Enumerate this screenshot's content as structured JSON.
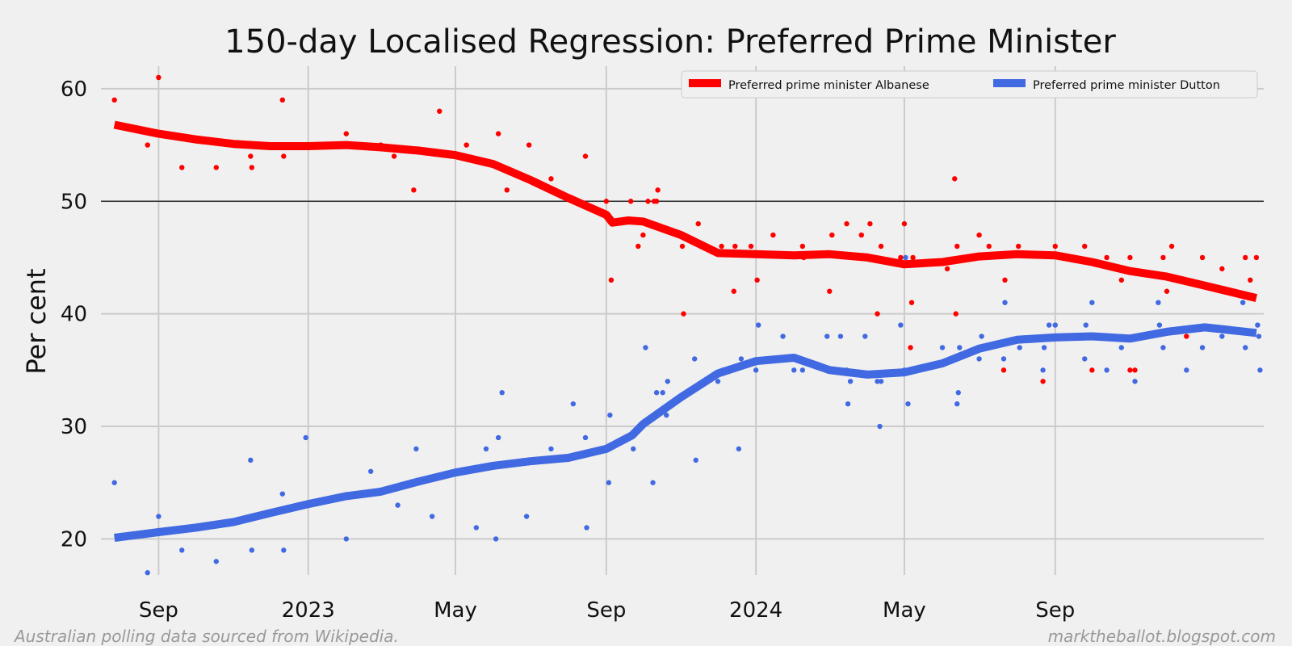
{
  "chart_data": {
    "type": "line",
    "title": "150-day Localised Regression: Preferred Prime Minister",
    "ylabel": "Per cent",
    "xlabel": "",
    "x_range": [
      "2022-07-16",
      "2025-02-18"
    ],
    "ylim": [
      16.8,
      62
    ],
    "y_ticks": [
      20,
      30,
      40,
      50,
      60
    ],
    "x_ticks": [
      {
        "date": "2022-09-01",
        "label": "Sep"
      },
      {
        "date": "2023-01-01",
        "label": "2023"
      },
      {
        "date": "2023-05-01",
        "label": "May"
      },
      {
        "date": "2023-09-01",
        "label": "Sep"
      },
      {
        "date": "2024-01-01",
        "label": "2024"
      },
      {
        "date": "2024-05-01",
        "label": "May"
      },
      {
        "date": "2024-09-01",
        "label": "Sep"
      }
    ],
    "reference_line": 50,
    "grid": true,
    "legend_position": "top-right",
    "footer_left": "Australian polling data sourced from Wikipedia.",
    "footer_right": "marktheballot.blogspot.com",
    "series": [
      {
        "name": "Preferred prime minister Albanese",
        "color": "#ff0000",
        "trend": [
          [
            "2022-07-27",
            56.8
          ],
          [
            "2022-09-01",
            56.0
          ],
          [
            "2022-10-01",
            55.5
          ],
          [
            "2022-11-01",
            55.1
          ],
          [
            "2022-12-01",
            54.9
          ],
          [
            "2023-01-01",
            54.9
          ],
          [
            "2023-02-01",
            55.0
          ],
          [
            "2023-03-01",
            54.8
          ],
          [
            "2023-04-01",
            54.5
          ],
          [
            "2023-05-01",
            54.1
          ],
          [
            "2023-06-01",
            53.3
          ],
          [
            "2023-07-01",
            51.9
          ],
          [
            "2023-08-01",
            50.3
          ],
          [
            "2023-09-01",
            48.8
          ],
          [
            "2023-09-06",
            48.1
          ],
          [
            "2023-09-19",
            48.3
          ],
          [
            "2023-10-01",
            48.2
          ],
          [
            "2023-11-01",
            47.0
          ],
          [
            "2023-12-01",
            45.4
          ],
          [
            "2024-01-01",
            45.3
          ],
          [
            "2024-02-01",
            45.2
          ],
          [
            "2024-03-01",
            45.3
          ],
          [
            "2024-04-01",
            45.0
          ],
          [
            "2024-05-01",
            44.4
          ],
          [
            "2024-06-01",
            44.6
          ],
          [
            "2024-07-01",
            45.1
          ],
          [
            "2024-08-01",
            45.3
          ],
          [
            "2024-09-01",
            45.2
          ],
          [
            "2024-10-01",
            44.6
          ],
          [
            "2024-11-01",
            43.8
          ],
          [
            "2024-12-01",
            43.3
          ],
          [
            "2025-01-01",
            42.5
          ],
          [
            "2025-02-12",
            41.4
          ]
        ],
        "polls": [
          [
            "2022-07-27",
            59
          ],
          [
            "2022-08-23",
            55
          ],
          [
            "2022-09-01",
            61
          ],
          [
            "2022-09-20",
            53
          ],
          [
            "2022-10-18",
            53
          ],
          [
            "2022-11-15",
            54
          ],
          [
            "2022-11-16",
            53
          ],
          [
            "2022-12-11",
            59
          ],
          [
            "2022-12-12",
            54
          ],
          [
            "2023-02-01",
            56
          ],
          [
            "2023-03-01",
            55
          ],
          [
            "2023-03-12",
            54
          ],
          [
            "2023-03-28",
            51
          ],
          [
            "2023-04-18",
            58
          ],
          [
            "2023-05-10",
            55
          ],
          [
            "2023-06-05",
            56
          ],
          [
            "2023-06-08",
            53
          ],
          [
            "2023-06-12",
            51
          ],
          [
            "2023-06-30",
            55
          ],
          [
            "2023-07-18",
            52
          ],
          [
            "2023-08-15",
            54
          ],
          [
            "2023-09-01",
            50
          ],
          [
            "2023-09-05",
            43
          ],
          [
            "2023-09-21",
            50
          ],
          [
            "2023-09-27",
            46
          ],
          [
            "2023-10-01",
            47
          ],
          [
            "2023-10-05",
            50
          ],
          [
            "2023-10-10",
            50
          ],
          [
            "2023-10-12",
            50
          ],
          [
            "2023-10-13",
            51
          ],
          [
            "2023-11-02",
            46
          ],
          [
            "2023-11-03",
            40
          ],
          [
            "2023-11-15",
            48
          ],
          [
            "2023-12-04",
            46
          ],
          [
            "2023-12-14",
            42
          ],
          [
            "2023-12-15",
            46
          ],
          [
            "2023-12-28",
            46
          ],
          [
            "2024-01-02",
            43
          ],
          [
            "2024-01-15",
            47
          ],
          [
            "2024-02-08",
            46
          ],
          [
            "2024-02-09",
            45
          ],
          [
            "2024-03-01",
            42
          ],
          [
            "2024-03-03",
            47
          ],
          [
            "2024-03-15",
            48
          ],
          [
            "2024-03-27",
            47
          ],
          [
            "2024-04-03",
            48
          ],
          [
            "2024-04-09",
            40
          ],
          [
            "2024-04-12",
            46
          ],
          [
            "2024-04-28",
            45
          ],
          [
            "2024-05-01",
            48
          ],
          [
            "2024-05-06",
            37
          ],
          [
            "2024-05-07",
            41
          ],
          [
            "2024-05-08",
            45
          ],
          [
            "2024-06-05",
            44
          ],
          [
            "2024-06-11",
            52
          ],
          [
            "2024-06-12",
            40
          ],
          [
            "2024-06-13",
            46
          ],
          [
            "2024-07-01",
            47
          ],
          [
            "2024-07-09",
            46
          ],
          [
            "2024-07-21",
            35
          ],
          [
            "2024-07-22",
            43
          ],
          [
            "2024-08-02",
            46
          ],
          [
            "2024-08-22",
            34
          ],
          [
            "2024-09-01",
            46
          ],
          [
            "2024-09-25",
            46
          ],
          [
            "2024-10-01",
            35
          ],
          [
            "2024-10-13",
            45
          ],
          [
            "2024-10-25",
            43
          ],
          [
            "2024-11-01",
            45
          ],
          [
            "2024-11-01",
            35
          ],
          [
            "2024-11-05",
            35
          ],
          [
            "2024-11-28",
            45
          ],
          [
            "2024-12-01",
            42
          ],
          [
            "2024-12-05",
            46
          ],
          [
            "2024-12-17",
            38
          ],
          [
            "2024-12-30",
            45
          ],
          [
            "2025-01-15",
            44
          ],
          [
            "2025-02-03",
            45
          ],
          [
            "2025-02-07",
            43
          ],
          [
            "2025-02-12",
            45
          ]
        ]
      },
      {
        "name": "Preferred prime minister Dutton",
        "color": "#4169e1",
        "trend": [
          [
            "2022-07-27",
            20.1
          ],
          [
            "2022-09-01",
            20.6
          ],
          [
            "2022-10-01",
            21.0
          ],
          [
            "2022-11-01",
            21.5
          ],
          [
            "2022-12-01",
            22.3
          ],
          [
            "2023-01-01",
            23.1
          ],
          [
            "2023-02-01",
            23.8
          ],
          [
            "2023-03-01",
            24.2
          ],
          [
            "2023-04-01",
            25.1
          ],
          [
            "2023-05-01",
            25.9
          ],
          [
            "2023-06-01",
            26.5
          ],
          [
            "2023-07-01",
            26.9
          ],
          [
            "2023-08-01",
            27.2
          ],
          [
            "2023-09-01",
            28.0
          ],
          [
            "2023-09-22",
            29.2
          ],
          [
            "2023-10-01",
            30.2
          ],
          [
            "2023-11-01",
            32.6
          ],
          [
            "2023-12-01",
            34.7
          ],
          [
            "2024-01-01",
            35.8
          ],
          [
            "2024-02-01",
            36.1
          ],
          [
            "2024-03-01",
            35.0
          ],
          [
            "2024-04-01",
            34.6
          ],
          [
            "2024-05-01",
            34.8
          ],
          [
            "2024-06-01",
            35.6
          ],
          [
            "2024-07-01",
            36.9
          ],
          [
            "2024-08-01",
            37.7
          ],
          [
            "2024-09-01",
            37.9
          ],
          [
            "2024-10-01",
            38.0
          ],
          [
            "2024-11-01",
            37.8
          ],
          [
            "2024-12-01",
            38.4
          ],
          [
            "2025-01-01",
            38.8
          ],
          [
            "2025-02-12",
            38.3
          ]
        ],
        "polls": [
          [
            "2022-07-27",
            25
          ],
          [
            "2022-08-23",
            17
          ],
          [
            "2022-09-01",
            22
          ],
          [
            "2022-09-20",
            19
          ],
          [
            "2022-10-18",
            18
          ],
          [
            "2022-11-15",
            27
          ],
          [
            "2022-11-16",
            19
          ],
          [
            "2022-12-11",
            24
          ],
          [
            "2022-12-12",
            19
          ],
          [
            "2022-12-30",
            29
          ],
          [
            "2023-02-01",
            20
          ],
          [
            "2023-02-21",
            26
          ],
          [
            "2023-03-15",
            23
          ],
          [
            "2023-03-30",
            28
          ],
          [
            "2023-04-12",
            22
          ],
          [
            "2023-05-01",
            26
          ],
          [
            "2023-05-18",
            21
          ],
          [
            "2023-05-26",
            28
          ],
          [
            "2023-06-03",
            20
          ],
          [
            "2023-06-05",
            29
          ],
          [
            "2023-06-08",
            33
          ],
          [
            "2023-06-28",
            22
          ],
          [
            "2023-07-18",
            28
          ],
          [
            "2023-08-05",
            32
          ],
          [
            "2023-08-15",
            29
          ],
          [
            "2023-08-16",
            21
          ],
          [
            "2023-09-03",
            25
          ],
          [
            "2023-09-04",
            31
          ],
          [
            "2023-09-23",
            28
          ],
          [
            "2023-10-01",
            30
          ],
          [
            "2023-10-03",
            37
          ],
          [
            "2023-10-09",
            25
          ],
          [
            "2023-10-12",
            33
          ],
          [
            "2023-10-17",
            33
          ],
          [
            "2023-10-20",
            31
          ],
          [
            "2023-10-21",
            34
          ],
          [
            "2023-11-12",
            36
          ],
          [
            "2023-11-13",
            27
          ],
          [
            "2023-12-01",
            34
          ],
          [
            "2023-12-05",
            35
          ],
          [
            "2023-12-18",
            28
          ],
          [
            "2023-12-20",
            36
          ],
          [
            "2024-01-01",
            35
          ],
          [
            "2024-01-03",
            39
          ],
          [
            "2024-01-23",
            38
          ],
          [
            "2024-02-01",
            35
          ],
          [
            "2024-02-08",
            35
          ],
          [
            "2024-02-28",
            38
          ],
          [
            "2024-03-10",
            38
          ],
          [
            "2024-03-15",
            35
          ],
          [
            "2024-03-16",
            32
          ],
          [
            "2024-03-18",
            34
          ],
          [
            "2024-03-30",
            38
          ],
          [
            "2024-04-09",
            34
          ],
          [
            "2024-04-11",
            30
          ],
          [
            "2024-04-12",
            34
          ],
          [
            "2024-04-28",
            39
          ],
          [
            "2024-05-01",
            35
          ],
          [
            "2024-05-02",
            45
          ],
          [
            "2024-05-04",
            32
          ],
          [
            "2024-06-01",
            37
          ],
          [
            "2024-06-13",
            32
          ],
          [
            "2024-06-14",
            33
          ],
          [
            "2024-06-15",
            37
          ],
          [
            "2024-07-01",
            36
          ],
          [
            "2024-07-03",
            38
          ],
          [
            "2024-07-21",
            36
          ],
          [
            "2024-07-22",
            41
          ],
          [
            "2024-08-03",
            37
          ],
          [
            "2024-08-22",
            35
          ],
          [
            "2024-08-23",
            37
          ],
          [
            "2024-08-27",
            39
          ],
          [
            "2024-09-01",
            39
          ],
          [
            "2024-09-25",
            36
          ],
          [
            "2024-09-26",
            39
          ],
          [
            "2024-10-01",
            41
          ],
          [
            "2024-10-13",
            35
          ],
          [
            "2024-10-25",
            37
          ],
          [
            "2024-11-05",
            34
          ],
          [
            "2024-11-24",
            41
          ],
          [
            "2024-11-25",
            39
          ],
          [
            "2024-11-28",
            37
          ],
          [
            "2024-12-17",
            35
          ],
          [
            "2024-12-30",
            37
          ],
          [
            "2025-01-15",
            38
          ],
          [
            "2025-02-01",
            41
          ],
          [
            "2025-02-03",
            37
          ],
          [
            "2025-02-13",
            39
          ],
          [
            "2025-02-14",
            38
          ],
          [
            "2025-02-15",
            35
          ]
        ]
      }
    ]
  }
}
